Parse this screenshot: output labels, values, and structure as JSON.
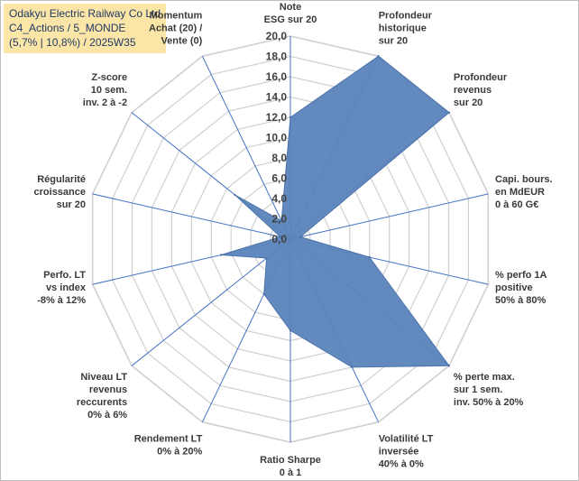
{
  "title_box": {
    "line1": "Odakyu Electric Railway Co Ltd",
    "line2": "C4_Actions / 5_MONDE",
    "line3": "(5,7% | 10,8%) / 2025W35"
  },
  "chart_data": {
    "type": "radar",
    "title": "",
    "rmin": 0,
    "rmax": 20,
    "tick_step": 2,
    "tick_labels": [
      "0,0",
      "2,0",
      "4,0",
      "6,0",
      "8,0",
      "10,0",
      "12,0",
      "14,0",
      "16,0",
      "18,0",
      "20,0"
    ],
    "grid": true,
    "legend": "none",
    "colors": {
      "fill": "#5b84bb",
      "stroke": "#4a73aa",
      "grid": "#d0d0d0",
      "spoke": "#4472c4"
    },
    "axes": [
      {
        "label": [
          "Note",
          "ESG sur 20"
        ]
      },
      {
        "label": [
          "Profondeur",
          "historique",
          "sur 20"
        ]
      },
      {
        "label": [
          "Profondeur",
          "revenus",
          "sur 20"
        ]
      },
      {
        "label": [
          "Capi. bours.",
          "en MdEUR",
          "0 à 60 G€"
        ]
      },
      {
        "label": [
          "% perfo 1A",
          "positive",
          "50% à 80%"
        ]
      },
      {
        "label": [
          "% perte max.",
          "sur 1 sem.",
          "inv. 50% à 20%"
        ]
      },
      {
        "label": [
          "Volatilité LT",
          "inversée",
          "40% à 0%"
        ]
      },
      {
        "label": [
          "Ratio Sharpe",
          "0 à 1"
        ]
      },
      {
        "label": [
          "Rendement LT",
          "0% à 20%"
        ]
      },
      {
        "label": [
          "Niveau LT",
          "revenus",
          "reccurents",
          "0% à 6%"
        ]
      },
      {
        "label": [
          "Perfo. LT",
          "vs index",
          "-8% à 12%"
        ]
      },
      {
        "label": [
          "Régularité",
          "croissance",
          "sur 20"
        ]
      },
      {
        "label": [
          "Z-score",
          "10 sem.",
          "inv. 2 à -2"
        ]
      },
      {
        "label": [
          "Momentum",
          "Achat (20) /",
          "Vente (0)"
        ]
      }
    ],
    "series": [
      {
        "values": [
          12,
          20,
          20,
          1,
          8,
          20,
          14,
          9,
          6,
          3,
          7,
          1,
          7,
          2
        ]
      }
    ]
  }
}
